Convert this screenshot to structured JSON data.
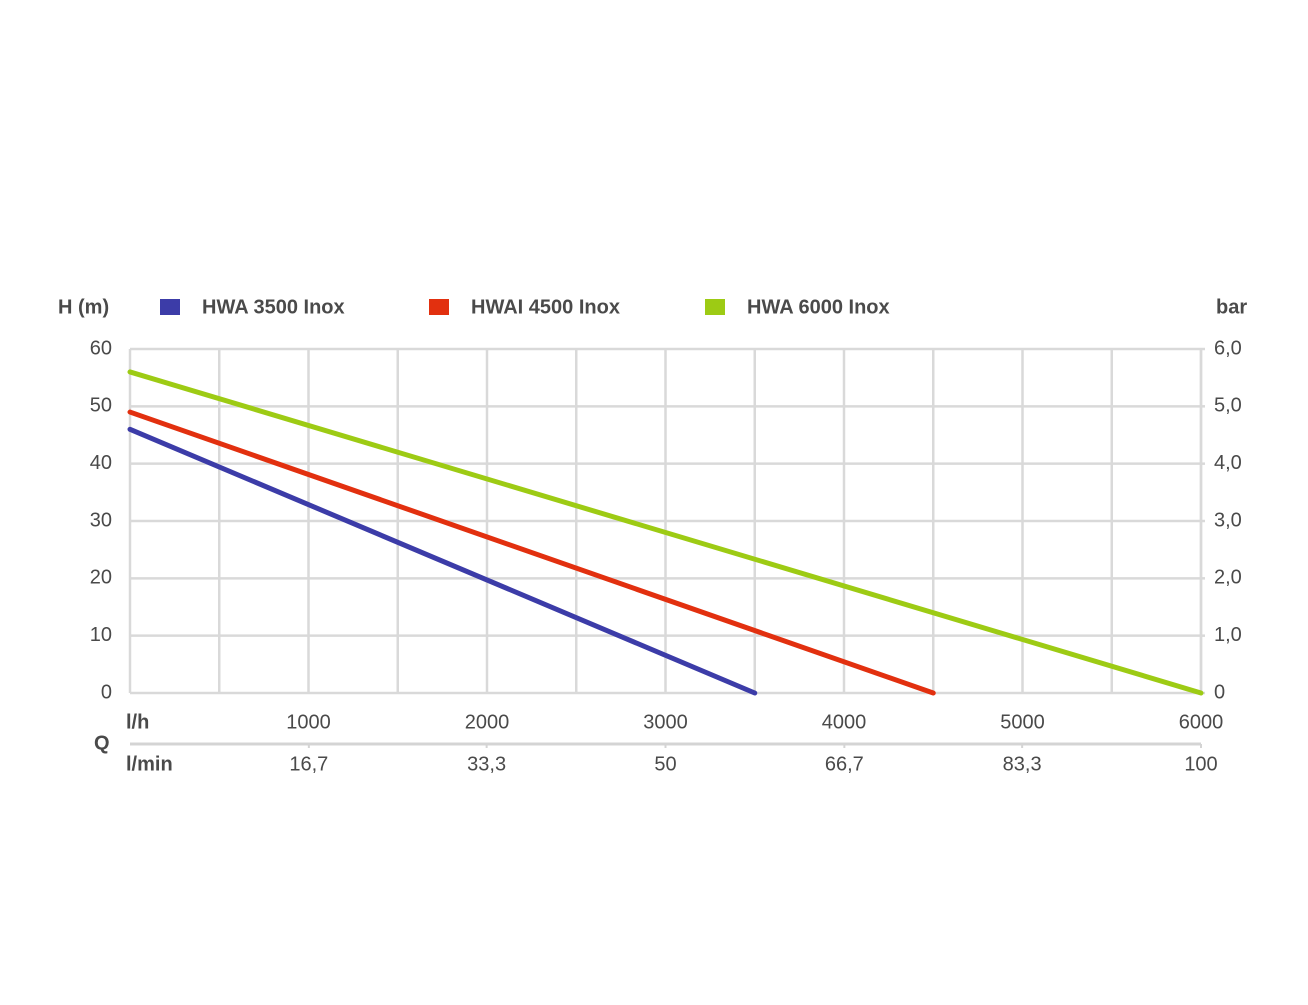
{
  "chart_data": {
    "type": "line",
    "y_label": "H (m)",
    "y2_label": "bar",
    "x_row_label": "l/h",
    "x2_row_label": "l/min",
    "x_axis_label": "Q",
    "xlim": [
      0,
      6000
    ],
    "xticks": [
      1000,
      2000,
      3000,
      4000,
      5000,
      6000
    ],
    "x_minor_grid": [
      500,
      1500,
      2500,
      3500,
      4500,
      5500
    ],
    "x2lim": [
      0,
      100
    ],
    "x2ticks": [
      {
        "value": 16.7,
        "label": "16,7"
      },
      {
        "value": 33.3,
        "label": "33,3"
      },
      50,
      {
        "value": 66.7,
        "label": "66,7"
      },
      {
        "value": 83.3,
        "label": "83,3"
      },
      100
    ],
    "ylim": [
      0,
      60
    ],
    "yticks": [
      0,
      10,
      20,
      30,
      40,
      50,
      60
    ],
    "y2lim": [
      0,
      6
    ],
    "y2ticks": [
      0,
      {
        "value": 1,
        "label": "1,0"
      },
      {
        "value": 2,
        "label": "2,0"
      },
      {
        "value": 3,
        "label": "3,0"
      },
      {
        "value": 4,
        "label": "4,0"
      },
      {
        "value": 5,
        "label": "5,0"
      },
      {
        "value": 6,
        "label": "6,0"
      }
    ],
    "grid": true,
    "legend": "top",
    "series": [
      {
        "name": "HWA 3500 Inox",
        "color": "#3c3ca8",
        "x": [
          0,
          3500
        ],
        "values": [
          46,
          0
        ]
      },
      {
        "name": "HWAI 4500 Inox",
        "color": "#e2300f",
        "x": [
          0,
          4500
        ],
        "values": [
          49,
          0
        ]
      },
      {
        "name": "HWA 6000 Inox",
        "color": "#9dcb14",
        "x": [
          0,
          6000
        ],
        "values": [
          56,
          0
        ]
      }
    ]
  }
}
